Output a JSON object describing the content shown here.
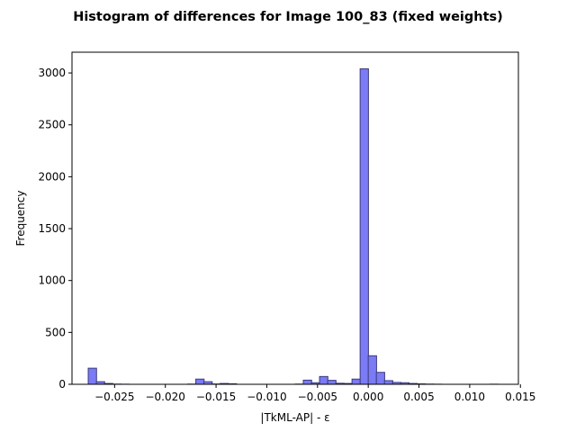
{
  "chart_data": {
    "type": "bar",
    "title": "Histogram of differences for Image 100_83 (fixed weights)",
    "xlabel": "|TkML-AP| - ε",
    "ylabel": "Frequency",
    "xlim": [
      -0.0292,
      0.0148
    ],
    "ylim": [
      0,
      3200
    ],
    "xticks": [
      -0.025,
      -0.02,
      -0.015,
      -0.01,
      -0.005,
      0.0,
      0.005,
      0.01,
      0.015
    ],
    "xtick_labels": [
      "−0.025",
      "−0.020",
      "−0.015",
      "−0.010",
      "−0.005",
      "0.000",
      "0.005",
      "0.010",
      "0.015"
    ],
    "yticks": [
      0,
      500,
      1000,
      1500,
      2000,
      2500,
      3000
    ],
    "ytick_labels": [
      "0",
      "500",
      "1000",
      "1500",
      "2000",
      "2500",
      "3000"
    ],
    "bin_width": 0.00082,
    "bins": [
      {
        "x": -0.0276,
        "value": 155
      },
      {
        "x": -0.0268,
        "value": 25
      },
      {
        "x": -0.026,
        "value": 8
      },
      {
        "x": -0.0252,
        "value": 2
      },
      {
        "x": -0.0244,
        "value": 1
      },
      {
        "x": -0.0178,
        "value": 2
      },
      {
        "x": -0.017,
        "value": 50
      },
      {
        "x": -0.0162,
        "value": 25
      },
      {
        "x": -0.0154,
        "value": 3
      },
      {
        "x": -0.0146,
        "value": 8
      },
      {
        "x": -0.0138,
        "value": 5
      },
      {
        "x": -0.0072,
        "value": 2
      },
      {
        "x": -0.0064,
        "value": 40
      },
      {
        "x": -0.0056,
        "value": 15
      },
      {
        "x": -0.0048,
        "value": 75
      },
      {
        "x": -0.004,
        "value": 38
      },
      {
        "x": -0.0032,
        "value": 10
      },
      {
        "x": -0.0024,
        "value": 8
      },
      {
        "x": -0.0016,
        "value": 50
      },
      {
        "x": -0.0008,
        "value": 3040
      },
      {
        "x": 0.0,
        "value": 275
      },
      {
        "x": 0.0008,
        "value": 115
      },
      {
        "x": 0.0016,
        "value": 35
      },
      {
        "x": 0.0024,
        "value": 18
      },
      {
        "x": 0.0032,
        "value": 15
      },
      {
        "x": 0.004,
        "value": 8
      },
      {
        "x": 0.0048,
        "value": 4
      },
      {
        "x": 0.0056,
        "value": 2
      },
      {
        "x": 0.0064,
        "value": 1
      },
      {
        "x": 0.012,
        "value": 1
      }
    ],
    "bar_color": "#7b7bf5",
    "edge_color": "#3b3b7a",
    "grid": false
  }
}
